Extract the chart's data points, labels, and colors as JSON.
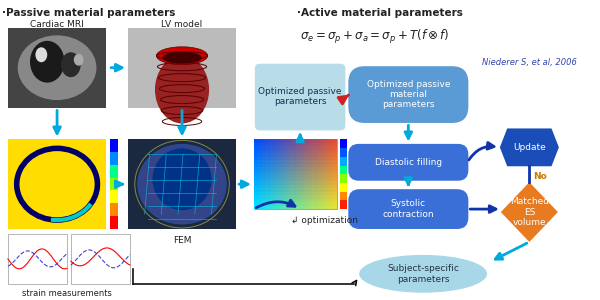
{
  "title_left": "·Passive material parameters",
  "title_right": "·Active material parameters",
  "equation": "$\\sigma_e = \\sigma_p + \\sigma_a = \\sigma_p + T(f \\otimes f)$",
  "citation": "Niederer S, et al, 2006",
  "bg_color": "#ffffff",
  "text_dark": "#222222",
  "cyan_arrow": "#00aadd",
  "dark_blue_arrow": "#1133aa",
  "red_arrow": "#cc2222",
  "black_arrow": "#111111",
  "orange_text": "#cc7700",
  "box_blue_opt": "#5b9bd5",
  "box_blue_mid": "#3a6fd8",
  "box_hex_dark": "#1a4db8",
  "box_orange": "#e87a20",
  "box_teal": "#a8d8e8",
  "box_passive_light": "#b8dce8"
}
